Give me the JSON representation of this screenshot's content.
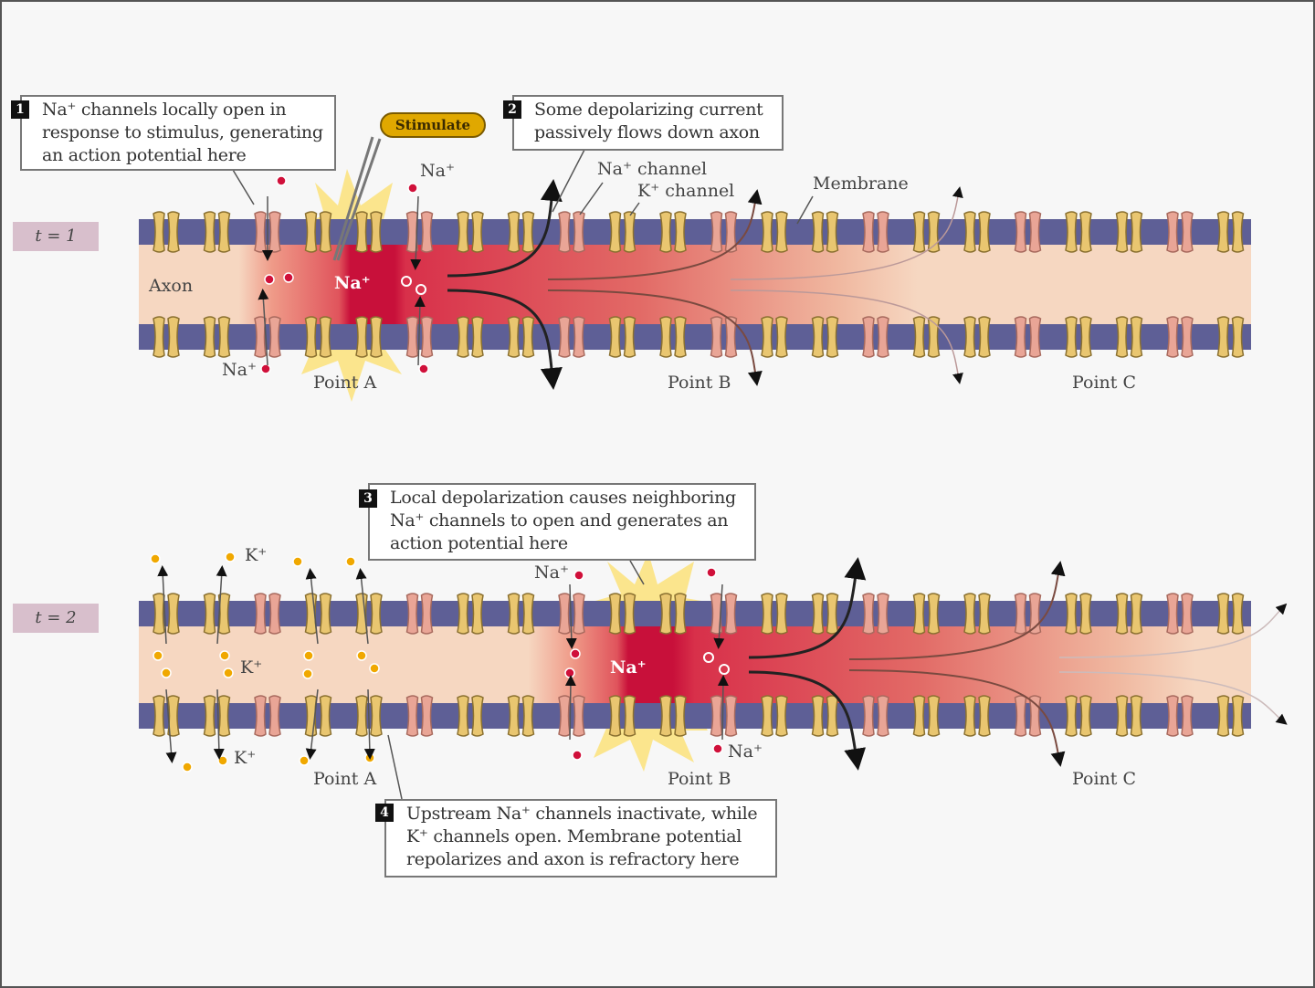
{
  "colors": {
    "membrane": "#5e5f96",
    "axon_resting": "#f6d7c1",
    "depolarized": "#c8103a",
    "k_channel": "#e9c670",
    "na_channel": "#e9a596",
    "na_ion": "#d0103a",
    "k_ion": "#f0a800",
    "stimulate": "#e0a800"
  },
  "panels": [
    {
      "time_label": "t = 1",
      "callouts": [
        {
          "number": "1",
          "text": "Na⁺ channels locally open in response to stimulus, generating an action potential here"
        },
        {
          "number": "2",
          "text": "Some depolarizing current passively flows down axon"
        }
      ],
      "stimulate": "Stimulate",
      "labels": {
        "na_top": "Na⁺",
        "na_channel": "Na⁺ channel",
        "k_channel": "K⁺ channel",
        "membrane": "Membrane",
        "axon": "Axon",
        "na_inside": "Na⁺",
        "na_bottom": "Na⁺",
        "point_a": "Point A",
        "point_b": "Point B",
        "point_c": "Point C"
      }
    },
    {
      "time_label": "t = 2",
      "callouts": [
        {
          "number": "3",
          "text": "Local depolarization causes neighboring Na⁺ channels to open and generates an action potential here"
        },
        {
          "number": "4",
          "text": "Upstream Na⁺ channels inactivate, while K⁺ channels open. Membrane potential repolarizes and axon is refractory here"
        }
      ],
      "labels": {
        "k_top": "K⁺",
        "k_mid": "K⁺",
        "k_bottom": "K⁺",
        "na_top": "Na⁺",
        "na_bottom": "Na⁺",
        "na_inside": "Na⁺",
        "point_a": "Point A",
        "point_b": "Point B",
        "point_c": "Point C"
      }
    }
  ]
}
